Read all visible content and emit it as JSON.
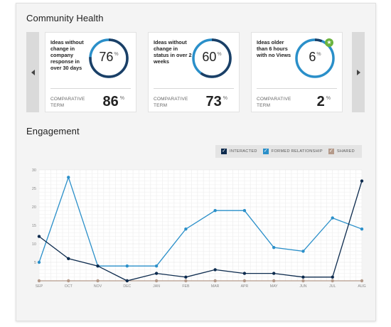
{
  "community_health": {
    "title": "Community Health",
    "cards": [
      {
        "description": "Ideas without change in company response in over 30 days",
        "value": "76",
        "unit": "%",
        "comparative_label": "COMPARATIVE TERM",
        "comparative_value": "86",
        "comparative_unit": "%",
        "ring_fraction": 0.76,
        "badge": false
      },
      {
        "description": "Ideas without change in status in over 2 weeks",
        "value": "60",
        "unit": "%",
        "comparative_label": "COMPARATIVE TERM",
        "comparative_value": "73",
        "comparative_unit": "%",
        "ring_fraction": 0.6,
        "badge": false
      },
      {
        "description": "Ideas older than 6 hours with no Views",
        "value": "6",
        "unit": "%",
        "comparative_label": "COMPARATIVE TERM",
        "comparative_value": "2",
        "comparative_unit": "%",
        "ring_fraction": 0.06,
        "badge": true,
        "badge_icon": "star-icon"
      }
    ],
    "nav": {
      "prev_icon": "chevron-left-icon",
      "next_icon": "chevron-right-icon"
    }
  },
  "engagement": {
    "title": "Engagement",
    "legend": [
      {
        "label": "INTERACTED",
        "color": "#0d2b4e"
      },
      {
        "label": "FORMED RELATIONSHIP",
        "color": "#2a8fc9"
      },
      {
        "label": "SHARED",
        "color": "#b49a8a"
      }
    ]
  },
  "colors": {
    "ring_dark": "#1b3f66",
    "ring_light": "#2a8fc9",
    "badge_green": "#6bb33f"
  },
  "chart_data": {
    "type": "line",
    "categories": [
      "SEP",
      "OCT",
      "NOV",
      "DEC",
      "JAN",
      "FEB",
      "MAR",
      "APR",
      "MAY",
      "JUN",
      "JUL",
      "AUG"
    ],
    "ylim": [
      0,
      30
    ],
    "yticks": [
      5,
      10,
      15,
      20,
      25,
      30
    ],
    "grid": true,
    "legend_position": "top-right",
    "series": [
      {
        "name": "INTERACTED",
        "color": "#0d2b4e",
        "values": [
          12,
          6,
          4,
          0,
          2,
          1,
          3,
          2,
          2,
          1,
          1,
          27
        ]
      },
      {
        "name": "FORMED RELATIONSHIP",
        "color": "#2a8fc9",
        "values": [
          5,
          28,
          4,
          4,
          4,
          14,
          19,
          19,
          9,
          8,
          17,
          14
        ]
      },
      {
        "name": "SHARED",
        "color": "#b49a8a",
        "values": [
          0,
          0,
          0,
          0,
          0,
          0,
          0,
          0,
          0,
          0,
          0,
          0
        ]
      }
    ]
  }
}
